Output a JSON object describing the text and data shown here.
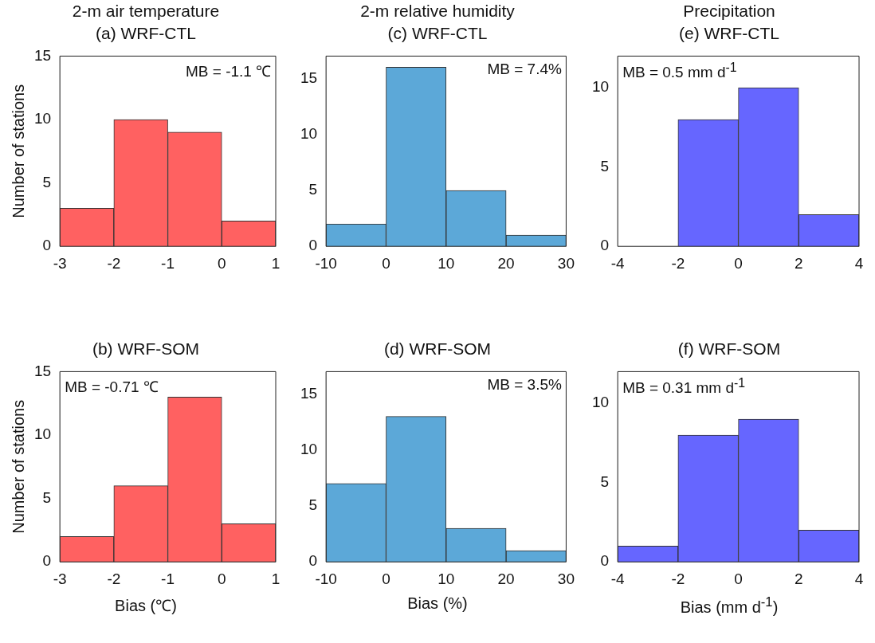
{
  "chart_data": [
    {
      "type": "histogram",
      "title": "2-m air temperature",
      "subtitle": "(a) WRF-CTL",
      "ylabel": "Number of stations",
      "annotations": [
        "MB = -1.1 ℃"
      ],
      "bins": [
        -3,
        -2,
        -1,
        0,
        1
      ],
      "values": [
        3,
        10,
        9,
        2
      ],
      "color": "#ff6161",
      "xlim": [
        -3,
        1
      ],
      "xticks": [
        -3,
        -2,
        -1,
        0,
        1
      ],
      "ylim": [
        0,
        15
      ],
      "yticks": [
        0,
        5,
        10,
        15
      ],
      "grid": false
    },
    {
      "type": "histogram",
      "title": "2-m relative humidity",
      "subtitle": "(c) WRF-CTL",
      "annotations": [
        "MB = 7.4%"
      ],
      "bins": [
        -10,
        0,
        10,
        20,
        30
      ],
      "values": [
        2,
        16,
        5,
        1
      ],
      "color": "#5ca8d8",
      "xlim": [
        -10,
        30
      ],
      "xticks": [
        -10,
        0,
        10,
        20,
        30
      ],
      "ylim": [
        0,
        17
      ],
      "yticks": [
        0,
        5,
        10,
        15
      ],
      "grid": false
    },
    {
      "type": "histogram",
      "title": "Precipitation",
      "subtitle": "(e) WRF-CTL",
      "annotations": [
        "MB = 0.5 mm d$^{-1}$"
      ],
      "bins": [
        -4,
        -2,
        0,
        2,
        4
      ],
      "values": [
        0,
        8,
        10,
        2
      ],
      "color": "#6666ff",
      "xlim": [
        -4,
        4
      ],
      "xticks": [
        -4,
        -2,
        0,
        2,
        4
      ],
      "ylim": [
        0,
        12
      ],
      "yticks": [
        0,
        5,
        10
      ],
      "grid": false
    },
    {
      "type": "histogram",
      "title": "(b) WRF-SOM",
      "xlabel": "Bias (℃)",
      "ylabel": "Number of stations",
      "annotations": [
        "MB = -0.71 ℃"
      ],
      "bins": [
        -3,
        -2,
        -1,
        0,
        1
      ],
      "values": [
        2,
        6,
        13,
        3
      ],
      "color": "#ff6161",
      "xlim": [
        -3,
        1
      ],
      "xticks": [
        -3,
        -2,
        -1,
        0,
        1
      ],
      "ylim": [
        0,
        15
      ],
      "yticks": [
        0,
        5,
        10,
        15
      ],
      "grid": false
    },
    {
      "type": "histogram",
      "title": "(d) WRF-SOM",
      "xlabel": "Bias (%)",
      "annotations": [
        "MB = 3.5%"
      ],
      "bins": [
        -10,
        0,
        10,
        20,
        30
      ],
      "values": [
        7,
        13,
        3,
        1
      ],
      "color": "#5ca8d8",
      "xlim": [
        -10,
        30
      ],
      "xticks": [
        -10,
        0,
        10,
        20,
        30
      ],
      "ylim": [
        0,
        17
      ],
      "yticks": [
        0,
        5,
        10,
        15
      ],
      "grid": false
    },
    {
      "type": "histogram",
      "title": "(f) WRF-SOM",
      "xlabel": "Bias (mm d$^{-1}$)",
      "annotations": [
        "MB = 0.31 mm d$^{-1}$"
      ],
      "bins": [
        -4,
        -2,
        0,
        2,
        4
      ],
      "values": [
        1,
        8,
        9,
        2
      ],
      "color": "#6666ff",
      "xlim": [
        -4,
        4
      ],
      "xticks": [
        -4,
        -2,
        0,
        2,
        4
      ],
      "ylim": [
        0,
        12
      ],
      "yticks": [
        0,
        5,
        10
      ],
      "grid": false
    }
  ]
}
